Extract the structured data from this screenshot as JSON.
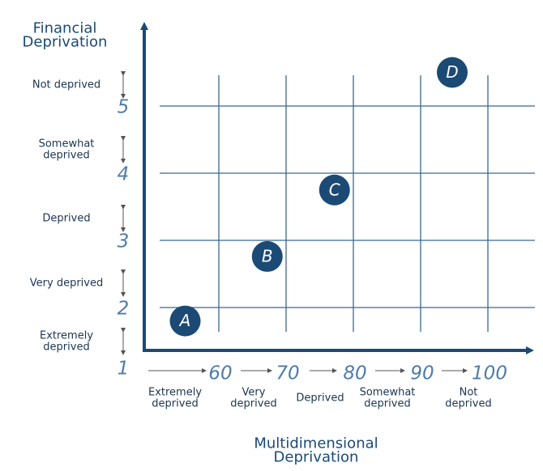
{
  "chart_data": {
    "type": "scatter",
    "ylabel": [
      "Financial",
      "Deprivation"
    ],
    "xlabel": [
      "Multidimensional",
      "Deprivation"
    ],
    "xlim": [
      50,
      106
    ],
    "ylim": [
      1,
      6.2
    ],
    "xticks": [
      60,
      70,
      80,
      90,
      100
    ],
    "yticks": [
      1,
      2,
      3,
      4,
      5
    ],
    "grid": true,
    "color": "#1b4a75",
    "points": [
      {
        "label": "A",
        "x": 55,
        "y": 1.8
      },
      {
        "label": "B",
        "x": 67.2,
        "y": 2.76
      },
      {
        "label": "C",
        "x": 77.2,
        "y": 3.75
      },
      {
        "label": "D",
        "x": 94.7,
        "y": 5.5
      }
    ],
    "y_bands": [
      [
        "Extremely",
        "deprived"
      ],
      [
        "Very deprived"
      ],
      [
        "Deprived"
      ],
      [
        "Somewhat",
        "deprived"
      ],
      [
        "Not deprived"
      ]
    ],
    "x_bands": [
      [
        "Extremely",
        "deprived"
      ],
      [
        "Very",
        "deprived"
      ],
      [
        "Deprived"
      ],
      [
        "Somewhat",
        "deprived"
      ],
      [
        "Not",
        "deprived"
      ]
    ]
  }
}
